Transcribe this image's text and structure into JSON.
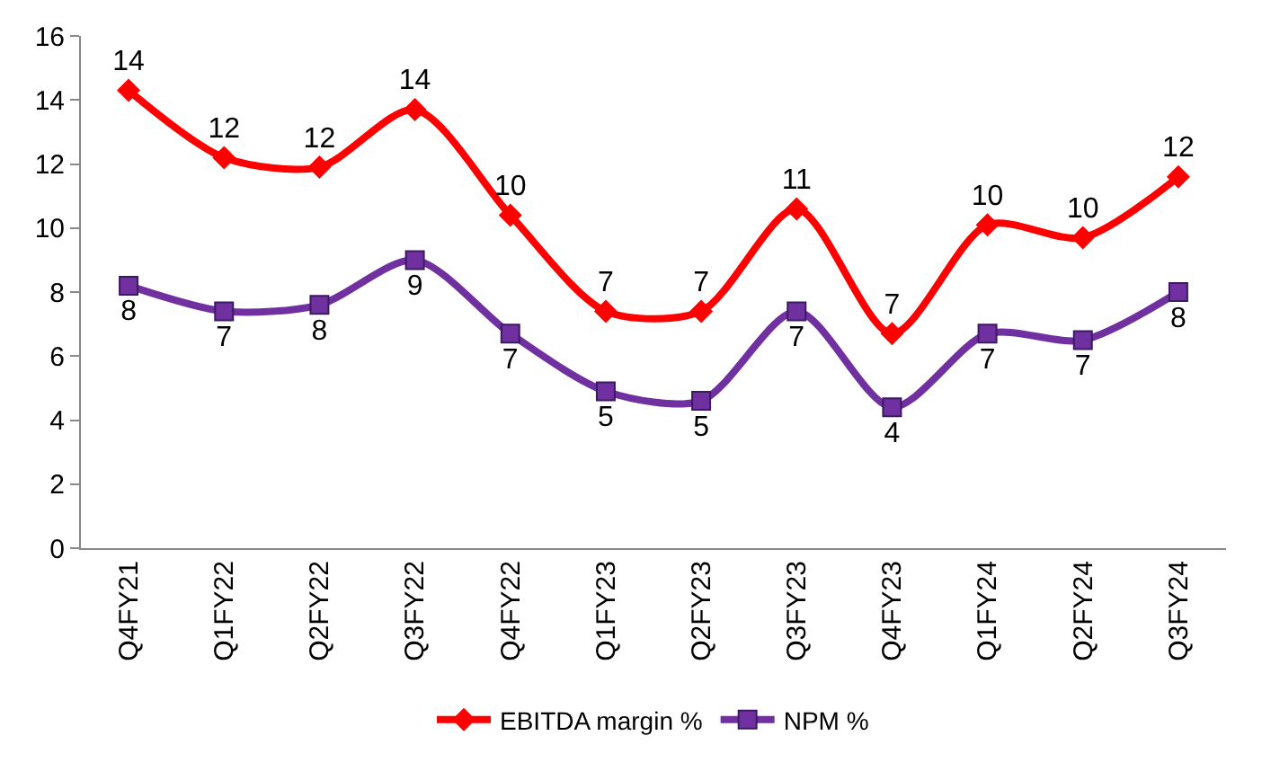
{
  "chart_data": {
    "type": "line",
    "categories": [
      "Q4FY21",
      "Q1FY22",
      "Q2FY22",
      "Q3FY22",
      "Q4FY22",
      "Q1FY23",
      "Q2FY23",
      "Q3FY23",
      "Q4FY23",
      "Q1FY24",
      "Q2FY24",
      "Q3FY24"
    ],
    "series": [
      {
        "name": "EBITDA margin %",
        "color": "#ff0000",
        "marker": "diamond",
        "values": [
          14.3,
          12.2,
          11.9,
          13.7,
          10.4,
          7.4,
          7.4,
          10.6,
          6.7,
          10.1,
          9.7,
          11.6
        ],
        "value_labels": [
          "14",
          "12",
          "12",
          "14",
          "10",
          "7",
          "7",
          "11",
          "7",
          "10",
          "10",
          "12"
        ]
      },
      {
        "name": "NPM %",
        "color": "#7030a0",
        "marker": "square",
        "values": [
          8.2,
          7.4,
          7.6,
          9.0,
          6.7,
          4.9,
          4.6,
          7.4,
          4.4,
          6.7,
          6.5,
          8.0
        ],
        "value_labels": [
          "8",
          "7",
          "8",
          "9",
          "7",
          "5",
          "5",
          "7",
          "4",
          "7",
          "7",
          "8"
        ]
      }
    ],
    "ylim": [
      0,
      16
    ],
    "yticks": [
      0,
      2,
      4,
      6,
      8,
      10,
      12,
      14,
      16
    ],
    "grid": false,
    "legend": "bottom",
    "line_style": "solid"
  }
}
